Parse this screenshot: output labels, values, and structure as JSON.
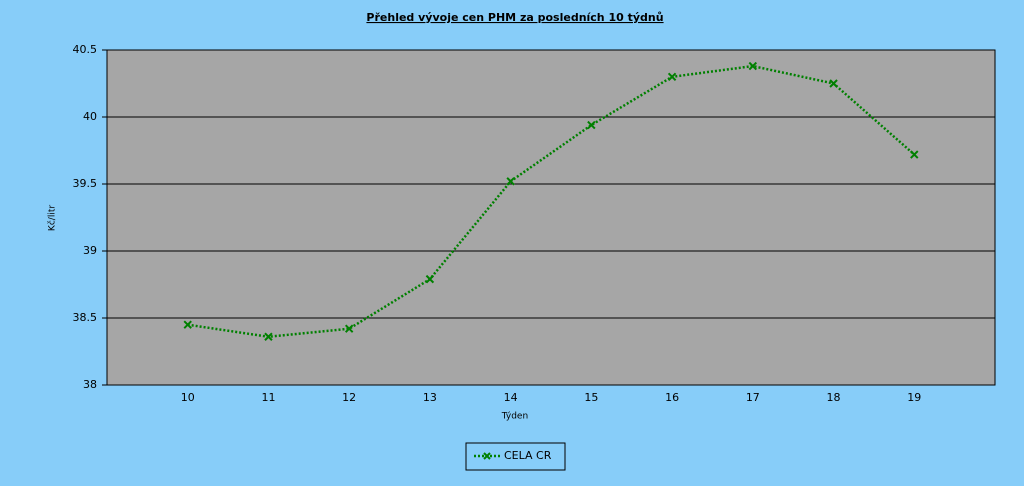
{
  "chart_data": {
    "type": "line",
    "title": "Přehled vývoje cen PHM za posledních 10 týdnů",
    "x_label": "Týden",
    "y_label": "Kč/litr",
    "x": [
      10,
      11,
      12,
      13,
      14,
      15,
      16,
      17,
      18,
      19
    ],
    "xlim": [
      9,
      20
    ],
    "xticks": [
      10,
      11,
      12,
      13,
      14,
      15,
      16,
      17,
      18,
      19
    ],
    "ylim": [
      38,
      40.5
    ],
    "yticks": [
      38,
      38.5,
      39,
      39.5,
      40,
      40.5
    ],
    "grid": true,
    "series": [
      {
        "name": "CELA CR",
        "color": "#008000",
        "values": [
          38.45,
          38.36,
          38.42,
          38.79,
          39.52,
          39.94,
          40.3,
          40.38,
          40.25,
          39.72
        ]
      }
    ]
  }
}
